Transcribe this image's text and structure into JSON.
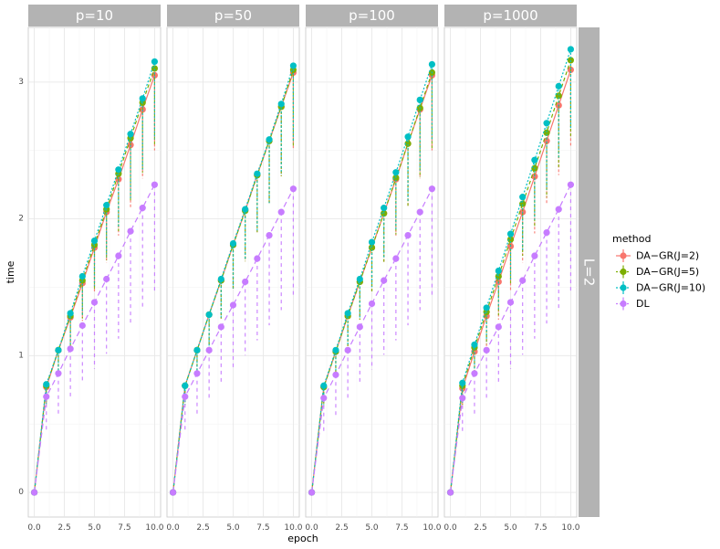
{
  "chart_data": {
    "type": "line",
    "xlabel": "epoch",
    "ylabel": "time",
    "xlim": [
      -0.5,
      10.5
    ],
    "ylim": [
      -0.18,
      3.4
    ],
    "x_ticks": [
      0.0,
      2.5,
      5.0,
      7.5,
      10.0
    ],
    "x_tick_labels": [
      "0.0",
      "2.5",
      "5.0",
      "7.5",
      "10.0"
    ],
    "y_ticks": [
      0,
      1,
      2,
      3
    ],
    "y_tick_labels": [
      "0",
      "1",
      "2",
      "3"
    ],
    "row_strip": "L=2",
    "legend": {
      "title": "method",
      "position": "right",
      "entries": [
        "DA−GR(J=2)",
        "DA−GR(J=5)",
        "DA−GR(J=10)",
        "DL"
      ]
    },
    "colors": {
      "DA−GR(J=2)": "#F8766D",
      "DA−GR(J=5)": "#7CAE00",
      "DA−GR(J=10)": "#00BFC4",
      "DL": "#C77CFF"
    },
    "panels": [
      {
        "strip": "p=10",
        "x": [
          0,
          1,
          2,
          3,
          4,
          5,
          6,
          7,
          8,
          9,
          10
        ],
        "series": [
          {
            "name": "DA−GR(J=2)",
            "values": [
              0,
              0.77,
              1.04,
              1.28,
              1.53,
              1.79,
              2.05,
              2.29,
              2.54,
              2.8,
              3.05
            ]
          },
          {
            "name": "DA−GR(J=5)",
            "values": [
              0,
              0.78,
              1.04,
              1.29,
              1.55,
              1.81,
              2.07,
              2.33,
              2.59,
              2.85,
              3.1
            ]
          },
          {
            "name": "DA−GR(J=10)",
            "values": [
              0,
              0.79,
              1.04,
              1.31,
              1.58,
              1.84,
              2.1,
              2.36,
              2.62,
              2.88,
              3.15
            ]
          },
          {
            "name": "DL",
            "values": [
              0,
              0.7,
              0.87,
              1.05,
              1.22,
              1.39,
              1.56,
              1.73,
              1.91,
              2.08,
              2.25
            ]
          }
        ]
      },
      {
        "strip": "p=50",
        "x": [
          0,
          1,
          2,
          3,
          4,
          5,
          6,
          7,
          8,
          9,
          10
        ],
        "series": [
          {
            "name": "DA−GR(J=2)",
            "values": [
              0,
              0.78,
              1.04,
              1.3,
              1.55,
              1.81,
              2.06,
              2.32,
              2.57,
              2.82,
              3.07
            ]
          },
          {
            "name": "DA−GR(J=5)",
            "values": [
              0,
              0.78,
              1.04,
              1.3,
              1.55,
              1.81,
              2.06,
              2.32,
              2.57,
              2.82,
              3.09
            ]
          },
          {
            "name": "DA−GR(J=10)",
            "values": [
              0,
              0.78,
              1.04,
              1.3,
              1.56,
              1.82,
              2.07,
              2.33,
              2.58,
              2.84,
              3.12
            ]
          },
          {
            "name": "DL",
            "values": [
              0,
              0.7,
              0.87,
              1.04,
              1.21,
              1.37,
              1.54,
              1.71,
              1.88,
              2.05,
              2.22
            ]
          }
        ]
      },
      {
        "strip": "p=100",
        "x": [
          0,
          1,
          2,
          3,
          4,
          5,
          6,
          7,
          8,
          9,
          10
        ],
        "series": [
          {
            "name": "DA−GR(J=2)",
            "values": [
              0,
              0.77,
              1.03,
              1.29,
              1.54,
              1.79,
              2.04,
              2.29,
              2.55,
              2.8,
              3.05
            ]
          },
          {
            "name": "DA−GR(J=5)",
            "values": [
              0,
              0.77,
              1.03,
              1.29,
              1.54,
              1.79,
              2.04,
              2.3,
              2.55,
              2.81,
              3.07
            ]
          },
          {
            "name": "DA−GR(J=10)",
            "values": [
              0,
              0.78,
              1.04,
              1.31,
              1.56,
              1.83,
              2.08,
              2.34,
              2.6,
              2.87,
              3.13
            ]
          },
          {
            "name": "DL",
            "values": [
              0,
              0.69,
              0.86,
              1.04,
              1.21,
              1.38,
              1.55,
              1.71,
              1.88,
              2.05,
              2.22
            ]
          }
        ]
      },
      {
        "strip": "p=1000",
        "x": [
          0,
          1,
          2,
          3,
          4,
          5,
          6,
          7,
          8,
          9,
          10
        ],
        "series": [
          {
            "name": "DA−GR(J=2)",
            "values": [
              0,
              0.76,
              1.03,
              1.29,
              1.54,
              1.8,
              2.05,
              2.31,
              2.57,
              2.83,
              3.09
            ]
          },
          {
            "name": "DA−GR(J=5)",
            "values": [
              0,
              0.78,
              1.06,
              1.32,
              1.58,
              1.85,
              2.11,
              2.37,
              2.63,
              2.9,
              3.16
            ]
          },
          {
            "name": "DA−GR(J=10)",
            "values": [
              0,
              0.8,
              1.08,
              1.35,
              1.62,
              1.89,
              2.16,
              2.43,
              2.7,
              2.97,
              3.24
            ]
          },
          {
            "name": "DL",
            "values": [
              0,
              0.69,
              0.87,
              1.04,
              1.21,
              1.39,
              1.55,
              1.73,
              1.9,
              2.07,
              2.25
            ]
          }
        ]
      }
    ]
  }
}
